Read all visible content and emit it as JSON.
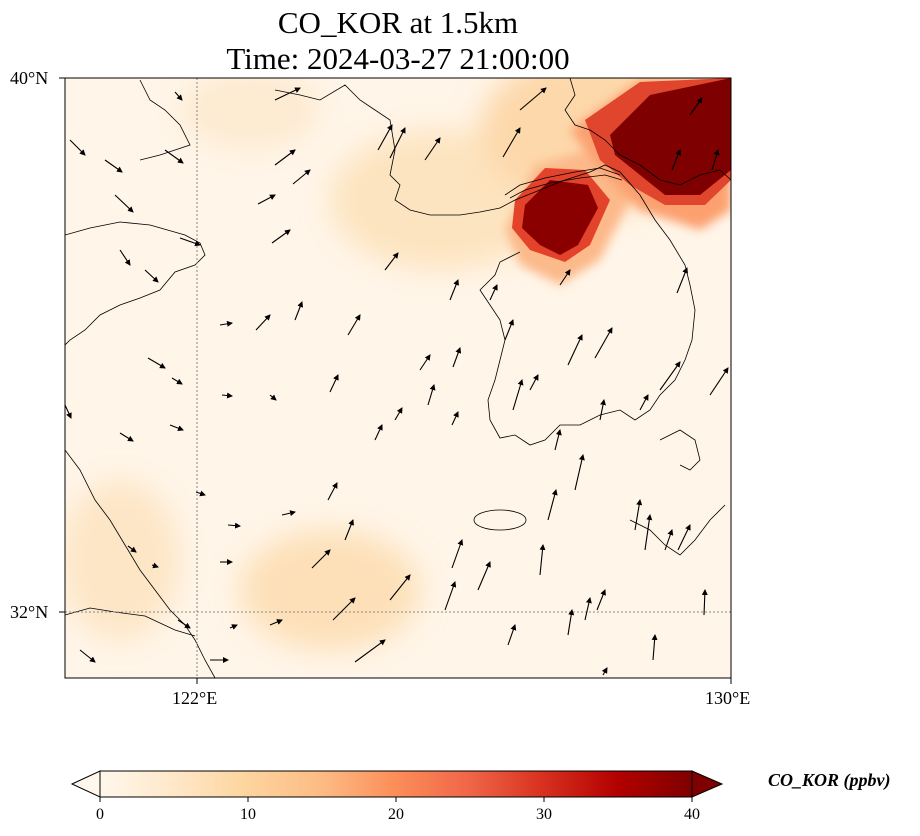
{
  "title": {
    "line1": "CO_KOR at 1.5km",
    "line2": "Time: 2024-03-27 21:00:00"
  },
  "map": {
    "projection": "PlateCarree",
    "extent": {
      "lon_min": 120,
      "lon_max": 130,
      "lat_min": 31,
      "lat_max": 40
    },
    "gridlines": {
      "lon": [
        122,
        130
      ],
      "lat": [
        32,
        40
      ]
    },
    "lon_tick_labels": [
      "122°E",
      "130°E"
    ],
    "lat_tick_labels": [
      "40°N",
      "32°N"
    ],
    "field": "CO concentration at 1.5 km",
    "wind_vectors": true
  },
  "colorbar": {
    "label": "CO_KOR (ppbv)",
    "colormap": "OrRd",
    "min": 0,
    "max": 40,
    "ticks": [
      "0",
      "10",
      "20",
      "30",
      "40"
    ],
    "extend": "both",
    "colors": [
      "#fff7ec",
      "#fee8c8",
      "#fdd49e",
      "#fdbb84",
      "#fc8d59",
      "#ef6548",
      "#d7301f",
      "#b30000",
      "#7f0000"
    ]
  }
}
